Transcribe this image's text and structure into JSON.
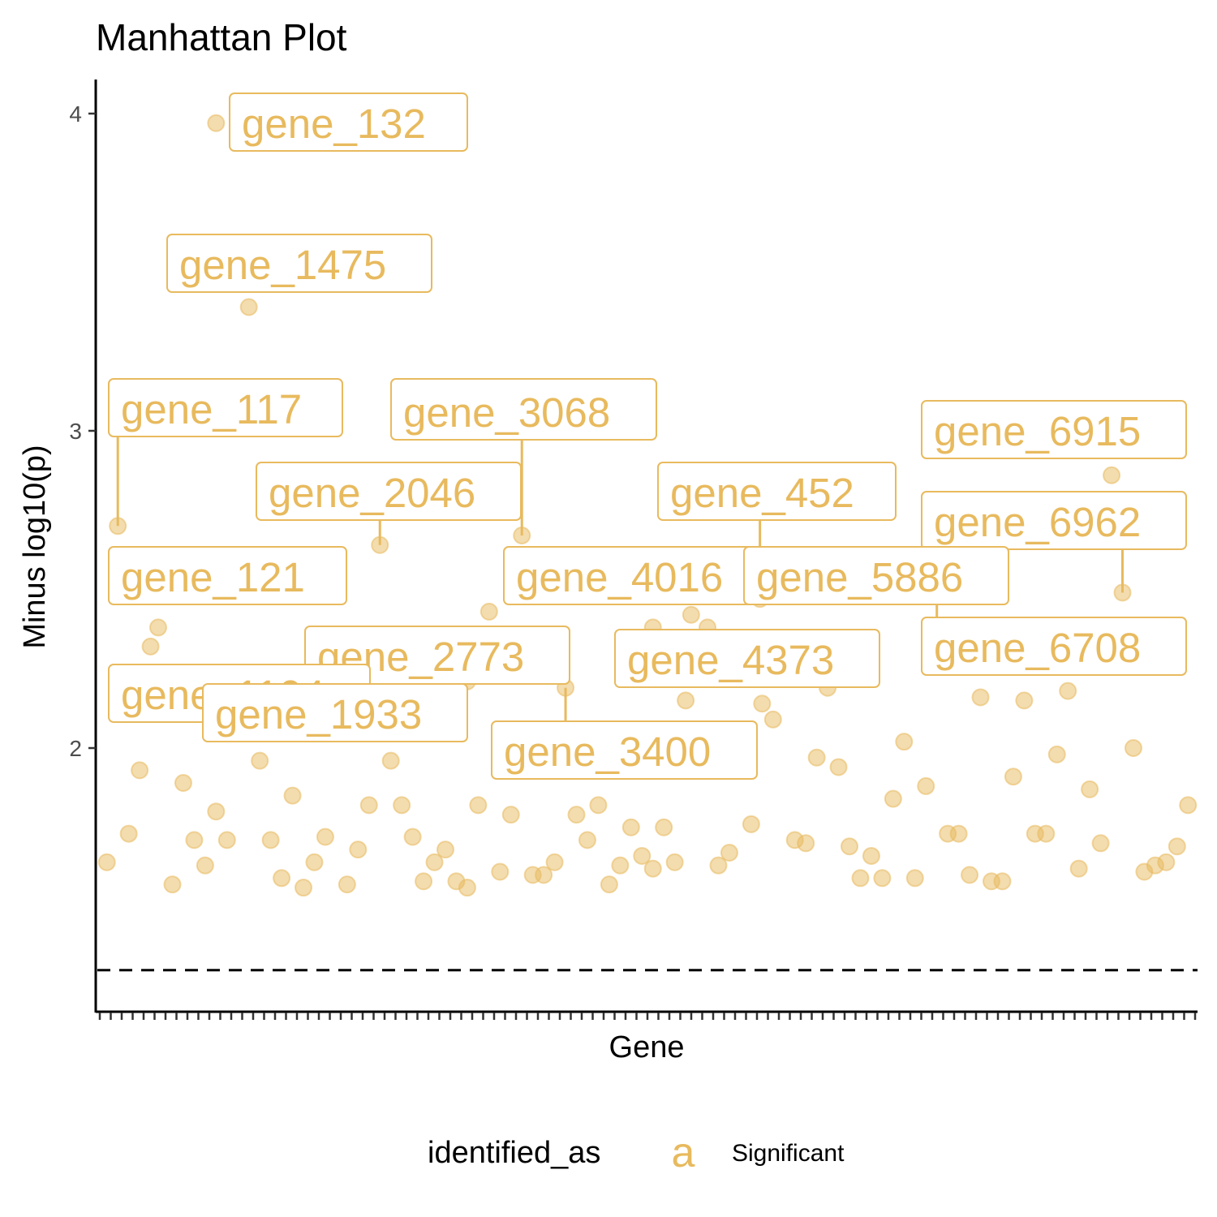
{
  "title": "Manhattan Plot",
  "colors": {
    "point": "#E8BA5E",
    "axis": "#000000",
    "threshold": "#000000"
  },
  "legend": {
    "title": "identified_as",
    "key_glyph": "a",
    "entries": [
      "Significant"
    ]
  },
  "chart_data": {
    "type": "scatter",
    "title": "Manhattan Plot",
    "xlabel": "Gene",
    "ylabel": "Minus log10(p)",
    "x_ticks_labeled": false,
    "y_ticks": [
      2,
      3,
      4
    ],
    "ylim": [
      1.2,
      4.1
    ],
    "xlim": [
      0,
      100
    ],
    "threshold": 1.3,
    "legend_position": "bottom",
    "grid": false,
    "series": [
      {
        "name": "Significant",
        "y": [
          1.64,
          2.7,
          1.73,
          1.93,
          2.38,
          2.32,
          1.89,
          1.57,
          1.71,
          1.63,
          1.8,
          1.71,
          3.39,
          1.96,
          1.71,
          1.59,
          1.85,
          1.56,
          1.64,
          1.72,
          1.57,
          1.68,
          1.82,
          2.64,
          1.96,
          1.82,
          1.72,
          1.58,
          1.64,
          1.68,
          1.58,
          1.56,
          1.82,
          2.43,
          1.61,
          1.79,
          2.67,
          1.6,
          1.6,
          1.64,
          2.19,
          1.79,
          1.71,
          1.82,
          1.57,
          1.63,
          1.75,
          1.66,
          1.62,
          1.75,
          1.64,
          2.15,
          1.63,
          1.67,
          2.14,
          2.09,
          1.76,
          2.47,
          1.71,
          1.7,
          2.19,
          1.97,
          1.94,
          1.69,
          1.59,
          1.66,
          1.59,
          1.84,
          2.02,
          1.59,
          1.88,
          1.73,
          1.73,
          1.6,
          2.16,
          1.58,
          1.58,
          1.91,
          2.15,
          1.73,
          1.73,
          1.98,
          2.18,
          1.62,
          1.87,
          1.7,
          2.86,
          2.49,
          2.0,
          1.61,
          1.63,
          1.64,
          1.69,
          1.82,
          3.97,
          2.38,
          2.38,
          2.42,
          2.21,
          2.36
        ],
        "x": [
          0.5,
          1.5,
          2.5,
          3.5,
          5.2,
          4.5,
          7.5,
          6.5,
          8.5,
          9.5,
          10.5,
          11.5,
          13.5,
          14.5,
          15.5,
          16.5,
          17.5,
          18.5,
          19.5,
          20.5,
          22.5,
          23.5,
          24.5,
          25.5,
          26.5,
          27.5,
          28.5,
          29.5,
          30.5,
          31.5,
          32.5,
          33.5,
          34.5,
          35.5,
          36.5,
          37.5,
          38.5,
          39.5,
          40.5,
          41.5,
          42.5,
          43.5,
          44.5,
          45.5,
          46.5,
          47.5,
          48.5,
          49.5,
          50.5,
          51.5,
          52.5,
          53.5,
          56.5,
          57.5,
          60.5,
          61.5,
          59.5,
          60.3,
          63.5,
          64.5,
          66.5,
          65.5,
          67.5,
          68.5,
          69.5,
          70.5,
          71.5,
          72.5,
          73.5,
          74.5,
          75.5,
          77.5,
          78.5,
          79.5,
          80.5,
          81.5,
          82.5,
          83.5,
          84.5,
          85.5,
          86.5,
          87.5,
          88.5,
          89.5,
          90.5,
          91.5,
          92.5,
          93.5,
          94.5,
          95.5,
          96.5,
          97.5,
          98.5,
          99.5,
          10.5,
          50.5,
          55.5,
          54.0,
          33.5,
          76.5
        ]
      }
    ],
    "labeled_points": [
      {
        "gene": "gene_132",
        "x": 10.5,
        "y": 3.97
      },
      {
        "gene": "gene_1475",
        "x": 13.5,
        "y": 3.39
      },
      {
        "gene": "gene_117",
        "x": 1.5,
        "y": 2.7
      },
      {
        "gene": "gene_3068",
        "x": 38.5,
        "y": 2.67
      },
      {
        "gene": "gene_6915",
        "x": 92.5,
        "y": 2.86
      },
      {
        "gene": "gene_2046",
        "x": 25.5,
        "y": 2.64
      },
      {
        "gene": "gene_452",
        "x": 60.3,
        "y": 2.47
      },
      {
        "gene": "gene_6962",
        "x": 93.5,
        "y": 2.49
      },
      {
        "gene": "gene_121",
        "x": 5.2,
        "y": 2.38
      },
      {
        "gene": "gene_4016",
        "x": 50.5,
        "y": 2.38
      },
      {
        "gene": "gene_5886",
        "x": 76.5,
        "y": 2.36
      },
      {
        "gene": "gene_2773",
        "x": 33.5,
        "y": 2.43
      },
      {
        "gene": "gene_4373",
        "x": 55.5,
        "y": 2.38
      },
      {
        "gene": "gene_6708",
        "x": 76.5,
        "y": 2.36
      },
      {
        "gene": "gene_1104",
        "x": 4.5,
        "y": 2.32
      },
      {
        "gene": "gene_1933",
        "x": 14.5,
        "y": 1.96
      },
      {
        "gene": "gene_3400",
        "x": 42.5,
        "y": 2.19
      }
    ]
  }
}
